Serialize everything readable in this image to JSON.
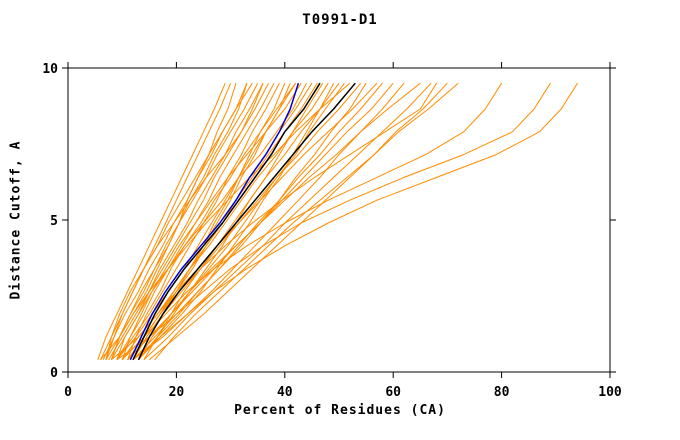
{
  "page": {
    "title": "T0991-D1"
  },
  "chart_data": {
    "type": "line",
    "title": "T0991-D1",
    "xlabel": "Percent of Residues (CA)",
    "ylabel": "Distance Cutoff, A",
    "xlim": [
      0,
      100
    ],
    "ylim": [
      0,
      10
    ],
    "x_ticks": [
      0,
      20,
      40,
      60,
      80,
      100
    ],
    "x_tick_labels": [
      "0",
      "20",
      "40",
      "60",
      "80",
      "100"
    ],
    "y_ticks": [
      0,
      5,
      10
    ],
    "y_tick_labels": [
      "0",
      "5",
      "10"
    ],
    "grid": false,
    "legend": null,
    "colors": {
      "orange": "#FF8C00",
      "black": "#000000",
      "blue": "#0000CD"
    },
    "y_grid": [
      0.4,
      1.15,
      1.9,
      2.65,
      3.4,
      4.15,
      4.9,
      5.65,
      6.4,
      7.15,
      7.9,
      8.65,
      9.5
    ],
    "series": [
      {
        "color": "orange",
        "x": [
          6,
          8,
          10,
          12,
          14,
          16,
          18,
          20,
          22,
          24,
          26,
          28,
          30
        ]
      },
      {
        "color": "orange",
        "x": [
          7,
          9.5,
          11.5,
          13.5,
          16,
          18,
          20.5,
          22.5,
          25,
          27,
          29.5,
          31.5,
          33
        ]
      },
      {
        "color": "orange",
        "x": [
          8,
          9.5,
          11.5,
          14,
          16,
          18.5,
          20.5,
          23,
          25.5,
          27.5,
          30,
          32.5,
          35
        ]
      },
      {
        "color": "orange",
        "x": [
          9,
          11.5,
          14,
          16,
          18.5,
          21,
          23.5,
          26,
          28,
          30.5,
          33,
          35.5,
          38
        ]
      },
      {
        "color": "orange",
        "x": [
          10,
          14,
          17,
          20,
          22.5,
          25,
          27,
          29.5,
          31.5,
          33.5,
          35.5,
          38,
          40
        ]
      },
      {
        "color": "orange",
        "x": [
          11,
          12.5,
          14.5,
          17,
          19,
          21.5,
          24.5,
          27,
          30,
          32.5,
          35.5,
          38.5,
          42
        ]
      },
      {
        "color": "orange",
        "x": [
          12,
          14.5,
          17.5,
          20,
          23,
          25.5,
          28.5,
          31,
          33.5,
          36.5,
          39,
          42,
          45
        ]
      },
      {
        "color": "orange",
        "x": [
          13,
          16.5,
          19.5,
          22.5,
          25.5,
          28.5,
          31,
          33.5,
          36.5,
          39,
          41.5,
          44,
          47
        ]
      },
      {
        "color": "orange",
        "x": [
          14,
          16.5,
          19,
          21.5,
          24.5,
          27.5,
          30.5,
          33.5,
          36.5,
          40,
          43,
          46.5,
          50
        ]
      },
      {
        "color": "orange",
        "x": [
          8,
          9.5,
          12,
          15,
          18.5,
          22,
          25.5,
          29.5,
          33.5,
          38,
          42,
          46.5,
          52
        ]
      },
      {
        "color": "orange",
        "x": [
          9,
          15,
          20,
          24,
          28,
          32,
          35.5,
          39,
          42,
          45.5,
          48.5,
          52,
          55
        ]
      },
      {
        "color": "orange",
        "x": [
          10,
          13,
          16.5,
          20,
          24,
          27.5,
          31.5,
          35.5,
          39.5,
          43.5,
          48,
          52.5,
          57
        ]
      },
      {
        "color": "orange",
        "x": [
          11,
          15,
          19,
          23,
          27,
          31,
          35.5,
          39.5,
          43.5,
          47.5,
          51.5,
          56,
          60
        ]
      },
      {
        "color": "orange",
        "x": [
          12,
          17.5,
          22,
          26.5,
          30.5,
          34.5,
          38.5,
          42.5,
          46.5,
          50,
          54,
          58,
          62
        ]
      },
      {
        "color": "orange",
        "x": [
          13,
          15.5,
          19,
          22.5,
          26.5,
          31,
          35.5,
          40,
          44.5,
          49.5,
          54,
          59,
          65
        ]
      },
      {
        "color": "orange",
        "x": [
          14,
          18.5,
          22.5,
          27,
          31.5,
          36,
          40,
          44.5,
          49,
          53.5,
          58,
          62.5,
          67
        ]
      },
      {
        "color": "orange",
        "x": [
          15,
          20,
          25,
          29.5,
          34,
          38.5,
          43,
          47.5,
          52,
          56.5,
          60.5,
          65.5,
          70
        ]
      },
      {
        "color": "orange",
        "x": [
          16,
          19.5,
          23.5,
          28,
          32.5,
          37,
          41.5,
          46.5,
          51.5,
          56.5,
          61,
          66.5,
          72
        ]
      },
      {
        "color": "orange",
        "x": [
          7,
          8,
          9.5,
          11.5,
          14,
          16.5,
          19.5,
          22.5,
          25.5,
          29,
          32,
          34,
          36
        ]
      },
      {
        "color": "orange",
        "x": [
          8,
          13,
          16.5,
          19.5,
          22.5,
          25,
          27.5,
          30,
          32,
          34.5,
          36.5,
          39,
          41
        ]
      },
      {
        "color": "orange",
        "x": [
          9,
          10.5,
          13,
          15.5,
          18.5,
          21.5,
          25,
          28.5,
          31.5,
          35.5,
          38.5,
          41.5,
          44
        ]
      },
      {
        "color": "orange",
        "x": [
          10,
          13,
          16.5,
          19.5,
          22.5,
          26,
          29,
          32,
          35,
          38.5,
          41.5,
          45,
          48
        ]
      },
      {
        "color": "orange",
        "x": [
          11,
          15,
          19,
          22.5,
          26,
          29.5,
          32.5,
          35.5,
          38.5,
          42,
          44.5,
          47.5,
          51
        ]
      },
      {
        "color": "orange",
        "x": [
          12,
          14.5,
          17.5,
          21,
          24.5,
          28,
          31.5,
          35,
          38.5,
          42.5,
          46,
          50,
          54
        ]
      },
      {
        "color": "orange",
        "x": [
          13,
          16.5,
          20.5,
          24,
          28,
          31.5,
          35,
          39,
          42.5,
          46.5,
          50,
          54,
          58
        ]
      },
      {
        "color": "orange",
        "x": [
          6,
          9.5,
          12,
          14.5,
          16.5,
          18.5,
          20.5,
          22,
          24,
          26,
          27.5,
          29.5,
          31
        ]
      },
      {
        "color": "orange",
        "x": [
          7,
          8.5,
          10,
          12,
          14,
          16.5,
          18.5,
          21,
          23.5,
          26,
          28.5,
          31,
          34
        ]
      },
      {
        "color": "orange",
        "x": [
          8,
          10.5,
          13,
          15,
          17.5,
          20,
          22.5,
          25,
          27,
          29.5,
          32,
          34.5,
          37
        ]
      },
      {
        "color": "orange",
        "x": [
          9,
          12,
          15,
          17.5,
          20,
          22.5,
          25,
          27.5,
          29.5,
          32,
          34,
          36.5,
          39
        ]
      },
      {
        "color": "orange",
        "x": [
          10,
          11.5,
          13.5,
          15.5,
          18,
          20.5,
          23.5,
          26.5,
          29.5,
          33,
          36.5,
          40,
          43
        ]
      },
      {
        "color": "orange",
        "x": [
          11,
          14,
          17,
          19.5,
          22.5,
          25.5,
          28.5,
          31,
          34,
          37,
          40,
          43,
          46
        ]
      },
      {
        "color": "orange",
        "x": [
          12,
          17,
          21,
          24.5,
          27.5,
          30.5,
          33.5,
          36,
          39,
          41.5,
          44,
          46.5,
          49
        ]
      },
      {
        "color": "orange",
        "x": [
          12,
          16,
          20,
          25,
          30,
          36,
          43,
          52,
          62,
          73,
          82,
          86,
          89
        ]
      },
      {
        "color": "orange",
        "x": [
          13,
          17,
          22,
          27,
          33,
          40,
          48,
          57,
          68,
          79,
          87,
          91,
          94
        ]
      },
      {
        "color": "orange",
        "x": [
          11,
          14,
          18,
          22,
          27,
          33,
          40,
          48,
          57,
          66,
          73,
          77,
          80
        ]
      },
      {
        "color": "orange",
        "x": [
          12,
          14,
          17,
          20.5,
          24.5,
          29,
          34,
          39.5,
          45.5,
          52,
          58.5,
          65,
          68
        ]
      },
      {
        "color": "orange",
        "x": [
          5.5,
          7,
          9,
          11,
          13,
          15,
          17,
          19,
          21,
          23,
          25,
          27,
          29
        ]
      },
      {
        "color": "orange",
        "x": [
          6.5,
          8.5,
          10.5,
          13,
          15,
          17.5,
          19.5,
          22,
          24,
          26.5,
          28.5,
          31,
          33
        ]
      },
      {
        "color": "orange",
        "x": [
          7.5,
          10,
          12.5,
          15,
          17,
          19.5,
          22,
          24,
          26.5,
          29,
          31,
          33.5,
          36
        ]
      },
      {
        "color": "orange",
        "x": [
          9,
          12.5,
          15.5,
          18.5,
          21.5,
          24,
          26.5,
          29,
          31.5,
          34,
          36.5,
          39,
          42
        ]
      },
      {
        "color": "black",
        "x": [
          12,
          14,
          16,
          18.5,
          21.5,
          25,
          28.5,
          31.5,
          34.5,
          37.5,
          40,
          43.5,
          46.5
        ]
      },
      {
        "color": "black",
        "x": [
          13,
          15,
          17.5,
          20.5,
          24,
          27.5,
          31,
          34.5,
          38,
          41.5,
          45,
          49,
          53
        ]
      },
      {
        "color": "blue",
        "x": [
          11.5,
          13.5,
          15.5,
          18,
          21,
          24.5,
          28,
          31,
          33.5,
          36.5,
          39,
          41,
          42.5
        ]
      }
    ]
  }
}
